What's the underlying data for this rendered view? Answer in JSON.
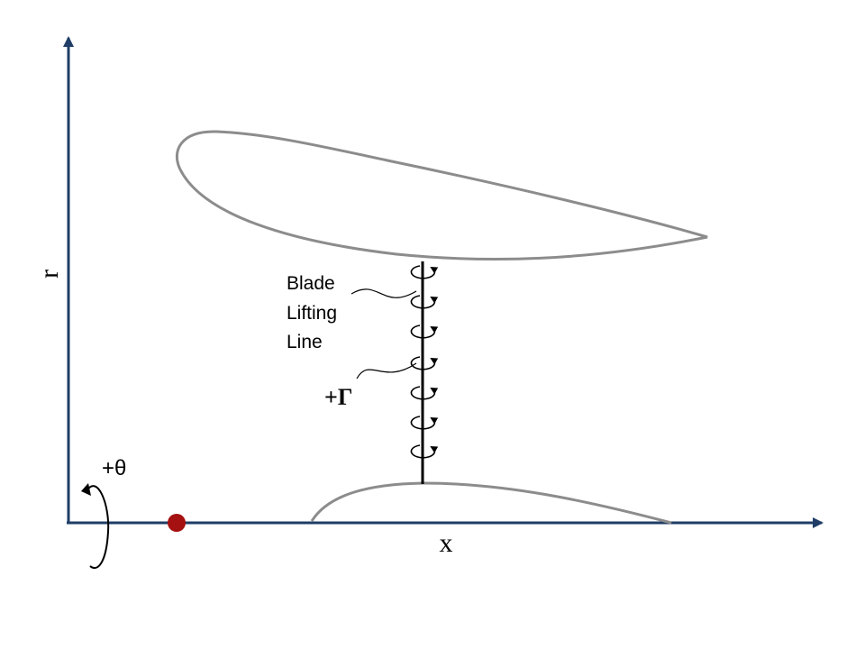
{
  "axes": {
    "r_label": "r",
    "x_label": "x"
  },
  "lifting_line_label": {
    "line1": "Blade",
    "line2": "Lifting",
    "line3": "Line"
  },
  "circulation_label": "+Γ",
  "rotation_label": "+θ",
  "colors": {
    "axis": "#1f3d66",
    "profile": "#8c8c8c",
    "hub_dot": "#a51010",
    "ink": "#000000"
  }
}
